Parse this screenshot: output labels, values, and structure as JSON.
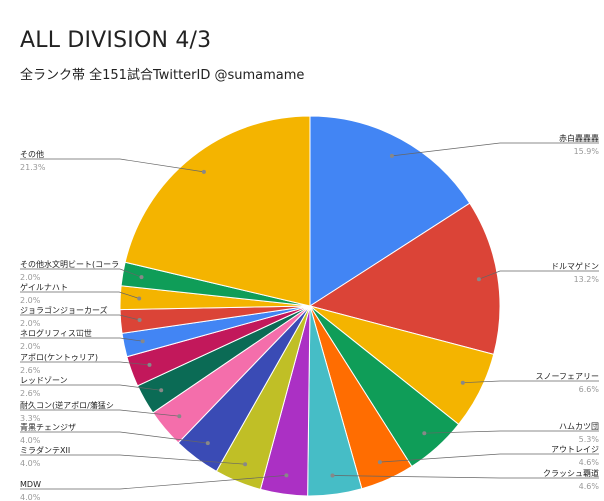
{
  "chart_data": {
    "type": "pie",
    "title": "ALL DIVISION 4/3",
    "subtitle": "全ランク帯 全151試合TwitterID @sumamame",
    "slices": [
      {
        "label": "赤白轟轟轟",
        "pct_text": "15.9%",
        "value": 15.9,
        "color": "#4285f4",
        "side": "right"
      },
      {
        "label": "ドルマゲドン",
        "pct_text": "13.2%",
        "value": 13.2,
        "color": "#db4437",
        "side": "right"
      },
      {
        "label": "スノーフェアリー",
        "pct_text": "6.6%",
        "value": 6.6,
        "color": "#f4b400",
        "side": "right"
      },
      {
        "label": "ハムカツ団",
        "pct_text": "5.3%",
        "value": 5.3,
        "color": "#0f9d58",
        "side": "right"
      },
      {
        "label": "アウトレイジ",
        "pct_text": "4.6%",
        "value": 4.6,
        "color": "#ff6d01",
        "side": "right"
      },
      {
        "label": "クラッシュ覇道",
        "pct_text": "4.6%",
        "value": 4.6,
        "color": "#46bdc6",
        "side": "right"
      },
      {
        "label": "MDW",
        "pct_text": "4.0%",
        "value": 4.0,
        "color": "#ab30c4",
        "side": "left"
      },
      {
        "label": "ミラダンテXII",
        "pct_text": "4.0%",
        "value": 4.0,
        "color": "#c0bf26",
        "side": "left"
      },
      {
        "label": "青黒チェンジザ",
        "pct_text": "4.0%",
        "value": 4.0,
        "color": "#3a4bb5",
        "side": "left"
      },
      {
        "label": "耐久コン(逆アポロ/藩猛シ",
        "pct_text": "3.3%",
        "value": 3.3,
        "color": "#f46eab",
        "side": "left"
      },
      {
        "label": "レッドゾーン",
        "pct_text": "2.6%",
        "value": 2.6,
        "color": "#0b6b55",
        "side": "left"
      },
      {
        "label": "アポロ(ケントゥリア)",
        "pct_text": "2.6%",
        "value": 2.6,
        "color": "#c2185b",
        "side": "left"
      },
      {
        "label": "ネログリフィス冚世",
        "pct_text": "2.0%",
        "value": 2.0,
        "color": "#4285f4",
        "side": "left"
      },
      {
        "label": "ジョラゴンジョーカーズ",
        "pct_text": "2.0%",
        "value": 2.0,
        "color": "#db4437",
        "side": "left"
      },
      {
        "label": "ゲイルナハト",
        "pct_text": "2.0%",
        "value": 2.0,
        "color": "#f4b400",
        "side": "left"
      },
      {
        "label": "その他水文明ビート(コーラ",
        "pct_text": "2.0%",
        "value": 2.0,
        "color": "#0f9d58",
        "side": "left"
      },
      {
        "label": "その他",
        "pct_text": "21.3%",
        "value": 21.3,
        "color": "#f4b400",
        "side": "left"
      }
    ],
    "legend": "none"
  }
}
